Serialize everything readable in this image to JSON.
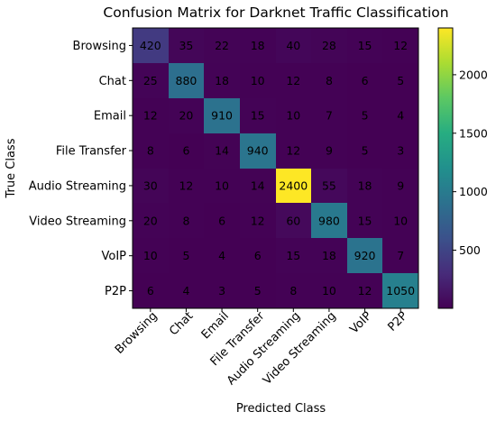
{
  "chart_data": {
    "type": "heatmap",
    "title": "Confusion Matrix for Darknet Traffic Classification",
    "xlabel": "Predicted Class",
    "ylabel": "True Class",
    "x_categories": [
      "Browsing",
      "Chat",
      "Email",
      "File Transfer",
      "Audio Streaming",
      "Video Streaming",
      "VoIP",
      "P2P"
    ],
    "y_categories": [
      "Browsing",
      "Chat",
      "Email",
      "File Transfer",
      "Audio Streaming",
      "Video Streaming",
      "VoIP",
      "P2P"
    ],
    "values": [
      [
        420,
        35,
        22,
        18,
        40,
        28,
        15,
        12
      ],
      [
        25,
        880,
        18,
        10,
        12,
        8,
        6,
        5
      ],
      [
        12,
        20,
        910,
        15,
        10,
        7,
        5,
        4
      ],
      [
        8,
        6,
        14,
        940,
        12,
        9,
        5,
        3
      ],
      [
        30,
        12,
        10,
        14,
        2400,
        55,
        18,
        9
      ],
      [
        20,
        8,
        6,
        12,
        60,
        980,
        15,
        10
      ],
      [
        10,
        5,
        4,
        6,
        15,
        18,
        920,
        7
      ],
      [
        6,
        4,
        3,
        5,
        8,
        10,
        12,
        1050
      ]
    ],
    "colormap": "viridis",
    "colorbar": {
      "ticks": [
        500,
        1000,
        1500,
        2000
      ],
      "range": [
        3,
        2400
      ]
    },
    "annotation_color": "#000000",
    "grid": false
  }
}
